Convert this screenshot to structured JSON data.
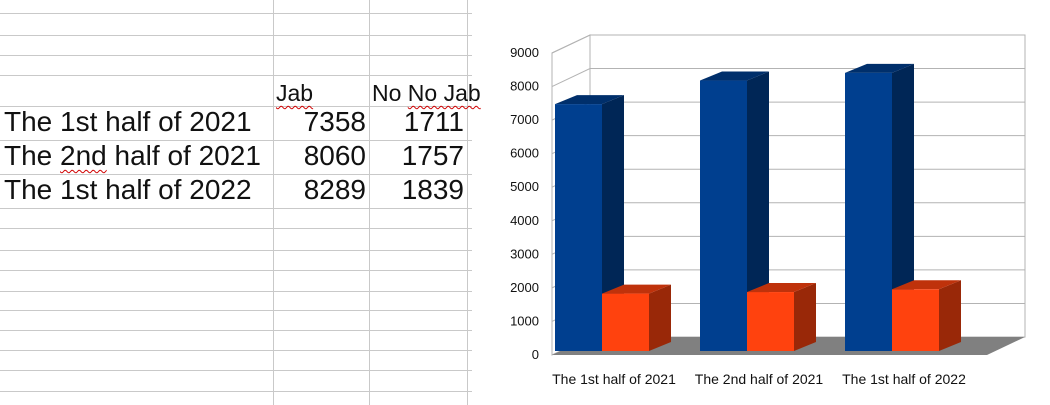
{
  "sheet": {
    "headers": [
      "Jab",
      "No Jab"
    ],
    "rows": [
      {
        "label": "The 1st half of 2021",
        "values": [
          "7358",
          "1711"
        ]
      },
      {
        "label": "The 2nd half of 2021",
        "values": [
          "8060",
          "1757"
        ]
      },
      {
        "label": "The 1st half of 2022",
        "values": [
          "8289",
          "1839"
        ]
      }
    ]
  },
  "colors": {
    "jab": "#003f8f",
    "no_jab": "#ff420e",
    "floor": "#808080",
    "grid": "#b3b3b3"
  },
  "chart_data": {
    "type": "bar",
    "style": "3d-clustered-column",
    "categories": [
      "The 1st half of 2021",
      "The 2nd half of 2021",
      "The 1st half of 2022"
    ],
    "series": [
      {
        "name": "Jab",
        "values": [
          7358,
          8060,
          8289
        ]
      },
      {
        "name": "No Jab",
        "values": [
          1711,
          1757,
          1839
        ]
      }
    ],
    "ylim": [
      0,
      9000
    ],
    "yticks": [
      "0",
      "1000",
      "2000",
      "3000",
      "4000",
      "5000",
      "6000",
      "7000",
      "8000",
      "9000"
    ],
    "grid": true,
    "legend": "none",
    "title": "",
    "xlabel": "",
    "ylabel": ""
  }
}
